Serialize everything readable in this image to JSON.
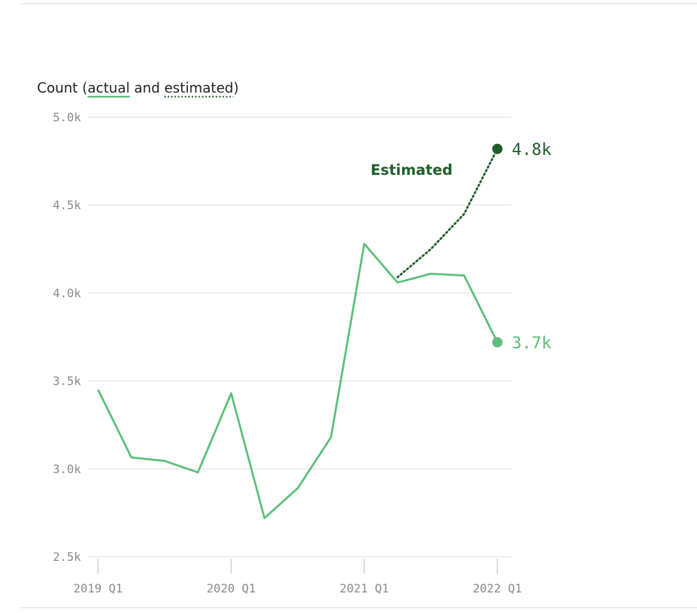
{
  "chart_data": {
    "type": "line",
    "title": {
      "prefix": "Count (",
      "actual_word": "actual",
      "middle": " and ",
      "estimated_word": "estimated",
      "suffix": ")"
    },
    "colors": {
      "actual": "#5cc07a",
      "estimated": "#1f5e2a",
      "grid": "#e6e6e6",
      "tick": "#8a8a8a"
    },
    "ylim": [
      2500,
      5000
    ],
    "y_ticks": [
      {
        "value": 2500,
        "label": "2.5k"
      },
      {
        "value": 3000,
        "label": "3.0k"
      },
      {
        "value": 3500,
        "label": "3.5k"
      },
      {
        "value": 4000,
        "label": "4.0k"
      },
      {
        "value": 4500,
        "label": "4.5k"
      },
      {
        "value": 5000,
        "label": "5.0k"
      }
    ],
    "x_ticks": [
      {
        "value": 0,
        "label": "2019 Q1"
      },
      {
        "value": 4,
        "label": "2020 Q1"
      },
      {
        "value": 8,
        "label": "2021 Q1"
      },
      {
        "value": 12,
        "label": "2022 Q1"
      }
    ],
    "series": [
      {
        "x": [
          "2019 Q1",
          "2019 Q2",
          "2019 Q3",
          "2019 Q4",
          "2020 Q1",
          "2020 Q2",
          "2020 Q3",
          "2020 Q4",
          "2021 Q1",
          "2021 Q2",
          "2021 Q3",
          "2021 Q4",
          "2022 Q1"
        ],
        "values": [
          3450,
          3065,
          3045,
          2980,
          3430,
          2720,
          2890,
          3180,
          4280,
          4060,
          4110,
          4100,
          3720
        ],
        "end_label": "3.7k"
      },
      {
        "name": "Estimated",
        "x": [
          "2021 Q2",
          "2021 Q3",
          "2021 Q4",
          "2022 Q1"
        ],
        "values": [
          4090,
          4250,
          4450,
          4820
        ],
        "end_label": "4.8k"
      }
    ]
  }
}
